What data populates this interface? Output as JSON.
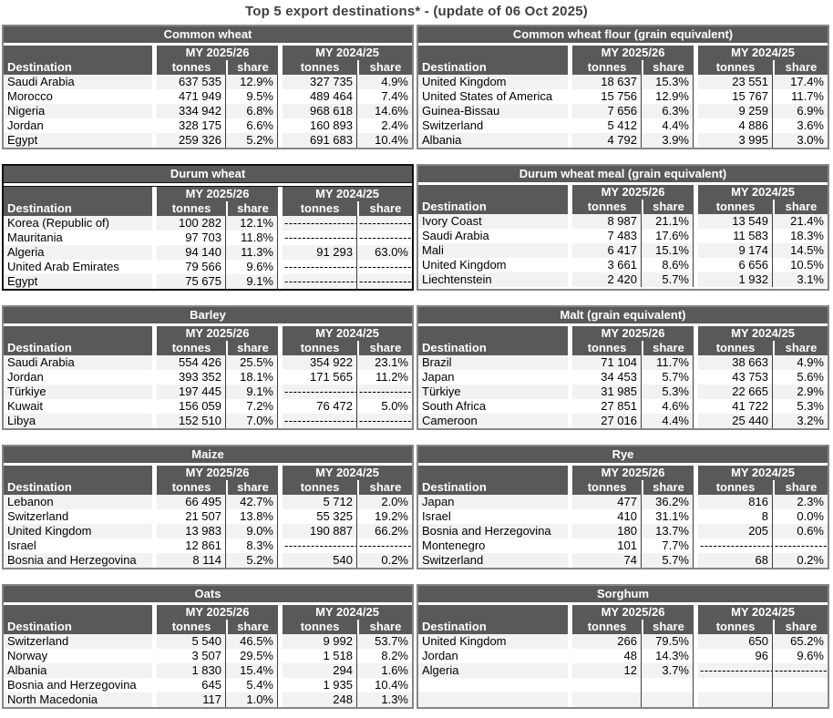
{
  "page_title": "Top 5 export destinations* - (update of 06 Oct 2025)",
  "column_headers": {
    "destination": "Destination",
    "tonnes": "tonnes",
    "share": "share"
  },
  "period_headers": [
    "MY 2025/26",
    "MY 2024/25"
  ],
  "no_data_dash_tonnes": "-----------------",
  "no_data_dash_share": "------------",
  "colors": {
    "header_bg": "#595959",
    "header_text": "#ffffff",
    "alt_row": "#f2f2f2",
    "table_border": "#868686",
    "highlight_border": "#111111",
    "title_text": "#404040"
  },
  "tables": [
    {
      "title": "Common wheat",
      "highlighted": false,
      "rows": [
        {
          "destination": "Saudi Arabia",
          "t1": "637 535",
          "s1": "12.9%",
          "t2": "327 735",
          "s2": "4.9%"
        },
        {
          "destination": "Morocco",
          "t1": "471 949",
          "s1": "9.5%",
          "t2": "489 464",
          "s2": "7.4%"
        },
        {
          "destination": "Nigeria",
          "t1": "334 942",
          "s1": "6.8%",
          "t2": "968 618",
          "s2": "14.6%"
        },
        {
          "destination": "Jordan",
          "t1": "328 175",
          "s1": "6.6%",
          "t2": "160 893",
          "s2": "2.4%"
        },
        {
          "destination": "Egypt",
          "t1": "259 326",
          "s1": "5.2%",
          "t2": "691 683",
          "s2": "10.4%"
        }
      ]
    },
    {
      "title": "Common wheat flour (grain equivalent)",
      "highlighted": false,
      "rows": [
        {
          "destination": "United Kingdom",
          "t1": "18 637",
          "s1": "15.3%",
          "t2": "23 551",
          "s2": "17.4%"
        },
        {
          "destination": "United States of America",
          "t1": "15 756",
          "s1": "12.9%",
          "t2": "15 767",
          "s2": "11.7%"
        },
        {
          "destination": "Guinea-Bissau",
          "t1": "7 656",
          "s1": "6.3%",
          "t2": "9 259",
          "s2": "6.9%"
        },
        {
          "destination": "Switzerland",
          "t1": "5 412",
          "s1": "4.4%",
          "t2": "4 886",
          "s2": "3.6%"
        },
        {
          "destination": "Albania",
          "t1": "4 792",
          "s1": "3.9%",
          "t2": "3 995",
          "s2": "3.0%"
        }
      ]
    },
    {
      "title": "Durum wheat",
      "highlighted": true,
      "rows": [
        {
          "destination": "Korea (Republic of)",
          "t1": "100 282",
          "s1": "12.1%",
          "t2": null,
          "s2": null
        },
        {
          "destination": "Mauritania",
          "t1": "97 703",
          "s1": "11.8%",
          "t2": null,
          "s2": null
        },
        {
          "destination": "Algeria",
          "t1": "94 140",
          "s1": "11.3%",
          "t2": "91 293",
          "s2": "63.0%"
        },
        {
          "destination": "United Arab Emirates",
          "t1": "79 566",
          "s1": "9.6%",
          "t2": null,
          "s2": null
        },
        {
          "destination": "Egypt",
          "t1": "75 675",
          "s1": "9.1%",
          "t2": null,
          "s2": null
        }
      ]
    },
    {
      "title": "Durum wheat meal (grain equivalent)",
      "highlighted": false,
      "rows": [
        {
          "destination": "Ivory Coast",
          "t1": "8 987",
          "s1": "21.1%",
          "t2": "13 549",
          "s2": "21.4%"
        },
        {
          "destination": "Saudi Arabia",
          "t1": "7 483",
          "s1": "17.6%",
          "t2": "11 583",
          "s2": "18.3%"
        },
        {
          "destination": "Mali",
          "t1": "6 417",
          "s1": "15.1%",
          "t2": "9 174",
          "s2": "14.5%"
        },
        {
          "destination": "United Kingdom",
          "t1": "3 661",
          "s1": "8.6%",
          "t2": "6 656",
          "s2": "10.5%"
        },
        {
          "destination": "Liechtenstein",
          "t1": "2 420",
          "s1": "5.7%",
          "t2": "1 932",
          "s2": "3.1%"
        }
      ]
    },
    {
      "title": "Barley",
      "highlighted": false,
      "rows": [
        {
          "destination": "Saudi Arabia",
          "t1": "554 426",
          "s1": "25.5%",
          "t2": "354 922",
          "s2": "23.1%"
        },
        {
          "destination": "Jordan",
          "t1": "393 352",
          "s1": "18.1%",
          "t2": "171 565",
          "s2": "11.2%"
        },
        {
          "destination": "Türkiye",
          "t1": "197 445",
          "s1": "9.1%",
          "t2": null,
          "s2": null
        },
        {
          "destination": "Kuwait",
          "t1": "156 059",
          "s1": "7.2%",
          "t2": "76 472",
          "s2": "5.0%"
        },
        {
          "destination": "Libya",
          "t1": "152 510",
          "s1": "7.0%",
          "t2": null,
          "s2": null
        }
      ]
    },
    {
      "title": "Malt (grain equivalent)",
      "highlighted": false,
      "rows": [
        {
          "destination": "Brazil",
          "t1": "71 104",
          "s1": "11.7%",
          "t2": "38 663",
          "s2": "4.9%"
        },
        {
          "destination": "Japan",
          "t1": "34 453",
          "s1": "5.7%",
          "t2": "43 753",
          "s2": "5.6%"
        },
        {
          "destination": "Türkiye",
          "t1": "31 985",
          "s1": "5.3%",
          "t2": "22 665",
          "s2": "2.9%"
        },
        {
          "destination": "South Africa",
          "t1": "27 851",
          "s1": "4.6%",
          "t2": "41 722",
          "s2": "5.3%"
        },
        {
          "destination": "Cameroon",
          "t1": "27 016",
          "s1": "4.4%",
          "t2": "25 440",
          "s2": "3.2%"
        }
      ]
    },
    {
      "title": "Maize",
      "highlighted": false,
      "rows": [
        {
          "destination": "Lebanon",
          "t1": "66 495",
          "s1": "42.7%",
          "t2": "5 712",
          "s2": "2.0%"
        },
        {
          "destination": "Switzerland",
          "t1": "21 507",
          "s1": "13.8%",
          "t2": "55 325",
          "s2": "19.2%"
        },
        {
          "destination": "United Kingdom",
          "t1": "13 983",
          "s1": "9.0%",
          "t2": "190 887",
          "s2": "66.2%"
        },
        {
          "destination": "Israel",
          "t1": "12 861",
          "s1": "8.3%",
          "t2": null,
          "s2": null
        },
        {
          "destination": "Bosnia and Herzegovina",
          "t1": "8 114",
          "s1": "5.2%",
          "t2": "540",
          "s2": "0.2%"
        }
      ]
    },
    {
      "title": "Rye",
      "highlighted": false,
      "rows": [
        {
          "destination": "Japan",
          "t1": "477",
          "s1": "36.2%",
          "t2": "816",
          "s2": "2.3%"
        },
        {
          "destination": "Israel",
          "t1": "410",
          "s1": "31.1%",
          "t2": "8",
          "s2": "0.0%"
        },
        {
          "destination": "Bosnia and Herzegovina",
          "t1": "180",
          "s1": "13.7%",
          "t2": "205",
          "s2": "0.6%"
        },
        {
          "destination": "Montenegro",
          "t1": "101",
          "s1": "7.7%",
          "t2": null,
          "s2": null
        },
        {
          "destination": "Switzerland",
          "t1": "74",
          "s1": "5.7%",
          "t2": "68",
          "s2": "0.2%"
        }
      ]
    },
    {
      "title": "Oats",
      "highlighted": false,
      "rows": [
        {
          "destination": "Switzerland",
          "t1": "5 540",
          "s1": "46.5%",
          "t2": "9 992",
          "s2": "53.7%"
        },
        {
          "destination": "Norway",
          "t1": "3 507",
          "s1": "29.5%",
          "t2": "1 518",
          "s2": "8.2%"
        },
        {
          "destination": "Albania",
          "t1": "1 830",
          "s1": "15.4%",
          "t2": "294",
          "s2": "1.6%"
        },
        {
          "destination": "Bosnia and Herzegovina",
          "t1": "645",
          "s1": "5.4%",
          "t2": "1 935",
          "s2": "10.4%"
        },
        {
          "destination": "North Macedonia",
          "t1": "117",
          "s1": "1.0%",
          "t2": "248",
          "s2": "1.3%"
        }
      ]
    },
    {
      "title": "Sorghum",
      "highlighted": false,
      "rows": [
        {
          "destination": "United Kingdom",
          "t1": "266",
          "s1": "79.5%",
          "t2": "650",
          "s2": "65.2%"
        },
        {
          "destination": "Jordan",
          "t1": "48",
          "s1": "14.3%",
          "t2": "96",
          "s2": "9.6%"
        },
        {
          "destination": "Algeria",
          "t1": "12",
          "s1": "3.7%",
          "t2": null,
          "s2": null
        },
        {
          "destination": "",
          "t1": "",
          "s1": "",
          "t2": "",
          "s2": ""
        },
        {
          "destination": "",
          "t1": "",
          "s1": "",
          "t2": "",
          "s2": ""
        }
      ]
    }
  ]
}
